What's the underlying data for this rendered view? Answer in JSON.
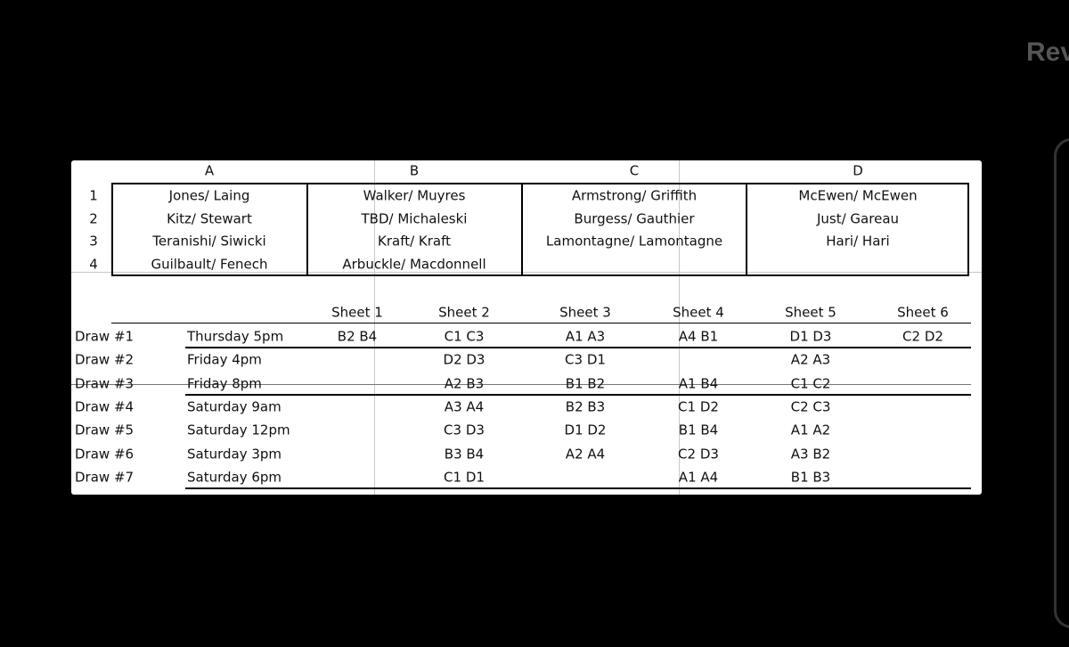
{
  "corner_text": "Rev",
  "pools": {
    "headers": [
      "A",
      "B",
      "C",
      "D"
    ],
    "row_numbers": [
      "1",
      "2",
      "3",
      "4"
    ],
    "teams": [
      [
        "Jones/ Laing",
        "Kitz/ Stewart",
        "Teranishi/ Siwicki",
        "Guilbault/ Fenech"
      ],
      [
        "Walker/ Muyres",
        "TBD/ Michaleski",
        "Kraft/ Kraft",
        "Arbuckle/ Macdonnell"
      ],
      [
        "Armstrong/ Griffith",
        "Burgess/ Gauthier",
        "Lamontagne/ Lamontagne"
      ],
      [
        "McEwen/ McEwen",
        "Just/ Gareau",
        "Hari/ Hari"
      ]
    ]
  },
  "schedule": {
    "sheets": [
      "Sheet 1",
      "Sheet 2",
      "Sheet 3",
      "Sheet 4",
      "Sheet 5",
      "Sheet 6"
    ],
    "draws": [
      {
        "label": "Draw #1",
        "time": "Thursday 5pm",
        "games": [
          "B2 B4",
          "C1 C3",
          "A1 A3",
          "A4 B1",
          "D1 D3",
          "C2 D2"
        ]
      },
      {
        "label": "Draw #2",
        "time": "Friday 4pm",
        "games": [
          null,
          "D2 D3",
          "C3 D1",
          null,
          "A2 A3",
          null
        ]
      },
      {
        "label": "Draw #3",
        "time": "Friday 8pm",
        "games": [
          null,
          "A2 B3",
          "B1 B2",
          "A1 B4",
          "C1 C2",
          null
        ]
      },
      {
        "label": "Draw #4",
        "time": "Saturday 9am",
        "games": [
          null,
          "A3 A4",
          "B2 B3",
          "C1 D2",
          "C2 C3",
          null
        ]
      },
      {
        "label": "Draw #5",
        "time": "Saturday 12pm",
        "games": [
          null,
          "C3 D3",
          "D1 D2",
          "B1 B4",
          "A1 A2",
          null
        ]
      },
      {
        "label": "Draw #6",
        "time": "Saturday 3pm",
        "games": [
          null,
          "B3 B4",
          "A2 A4",
          "C2 D3",
          "A3 B2",
          null
        ]
      },
      {
        "label": "Draw #7",
        "time": "Saturday 6pm",
        "games": [
          null,
          "C1 D1",
          null,
          "A1 A4",
          "B1 B3",
          null
        ]
      }
    ]
  }
}
